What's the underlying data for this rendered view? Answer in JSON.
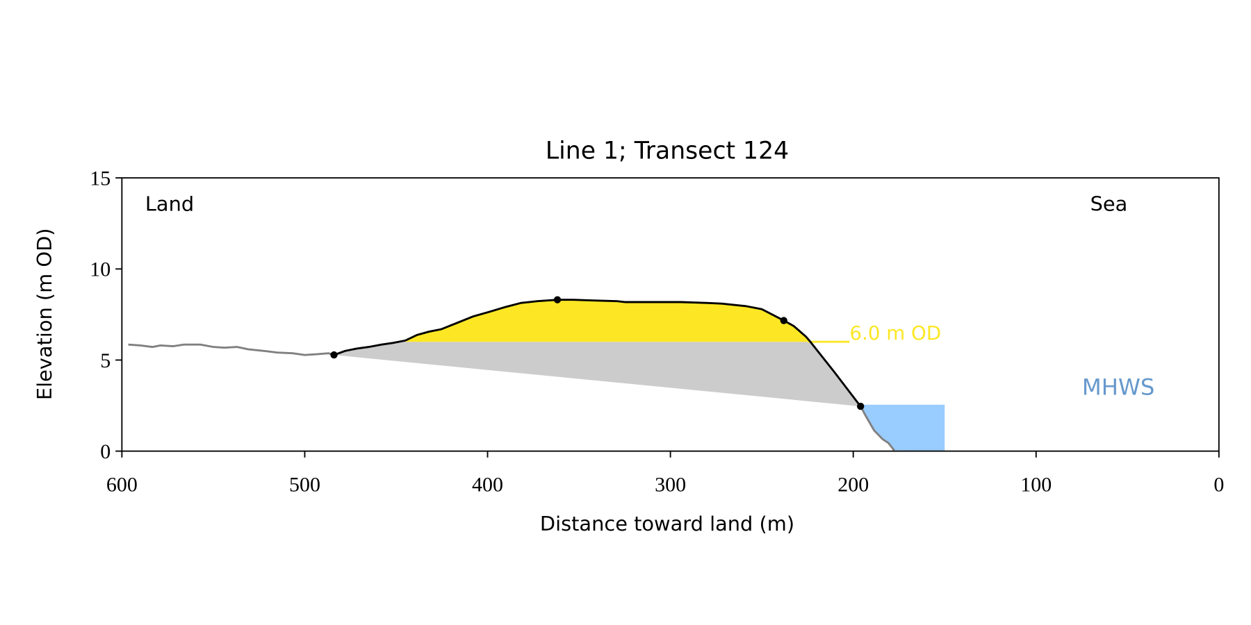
{
  "chart_data": {
    "type": "area",
    "title": "Line 1; Transect 124",
    "xlabel": "Distance toward land (m)",
    "ylabel": "Elevation (m OD)",
    "xlim": [
      600,
      0
    ],
    "ylim": [
      0,
      15
    ],
    "xticks": [
      600,
      500,
      400,
      300,
      200,
      100,
      0
    ],
    "yticks": [
      0,
      5,
      10,
      15
    ],
    "grid": false,
    "annotations": {
      "land": "Land",
      "sea": "Sea",
      "threshold_label": "6.0 m OD",
      "mhws_label": "MHWS"
    },
    "threshold": 6.0,
    "mhws": 2.55,
    "mhws_x_range": [
      196,
      150
    ],
    "colors": {
      "profile_outer": "#808080",
      "profile_dune": "#000000",
      "dune_fill": "#fde725",
      "base_fill": "#cccccc",
      "mhws_fill": "#99ccff",
      "mhws_text": "#6699cc",
      "threshold": "#fde725"
    },
    "profile_landward": [
      [
        596.5,
        5.85
      ],
      [
        589.9,
        5.8
      ],
      [
        583.3,
        5.72
      ],
      [
        579,
        5.8
      ],
      [
        572,
        5.76
      ],
      [
        566,
        5.85
      ],
      [
        557,
        5.85
      ],
      [
        550,
        5.72
      ],
      [
        544,
        5.68
      ],
      [
        537,
        5.72
      ],
      [
        531,
        5.59
      ],
      [
        522,
        5.5
      ],
      [
        515,
        5.41
      ],
      [
        506.6,
        5.37
      ],
      [
        500,
        5.28
      ],
      [
        493.4,
        5.32
      ],
      [
        487,
        5.37
      ],
      [
        484,
        5.28
      ]
    ],
    "profile_dune": [
      [
        484,
        5.28
      ],
      [
        478,
        5.5
      ],
      [
        471.5,
        5.63
      ],
      [
        465,
        5.72
      ],
      [
        458,
        5.85
      ],
      [
        451.8,
        5.94
      ],
      [
        445,
        6.07
      ],
      [
        438.6,
        6.38
      ],
      [
        432,
        6.56
      ],
      [
        425.4,
        6.69
      ],
      [
        416.7,
        7.04
      ],
      [
        408,
        7.39
      ],
      [
        399,
        7.65
      ],
      [
        390,
        7.92
      ],
      [
        381.6,
        8.14
      ],
      [
        372.8,
        8.23
      ],
      [
        361.8,
        8.31
      ],
      [
        353,
        8.31
      ],
      [
        342,
        8.27
      ],
      [
        329,
        8.23
      ],
      [
        324.6,
        8.18
      ],
      [
        307,
        8.18
      ],
      [
        294,
        8.18
      ],
      [
        280.7,
        8.14
      ],
      [
        272,
        8.1
      ],
      [
        258.8,
        7.96
      ],
      [
        250,
        7.79
      ],
      [
        238,
        7.17
      ],
      [
        232.5,
        6.86
      ],
      [
        225.9,
        6.29
      ],
      [
        223.7,
        6.03
      ],
      [
        210.5,
        4.36
      ],
      [
        196,
        2.46
      ]
    ],
    "profile_seaward": [
      [
        196,
        2.46
      ],
      [
        193,
        1.9
      ],
      [
        188.6,
        1.14
      ],
      [
        184,
        0.66
      ],
      [
        180.7,
        0.44
      ],
      [
        177.6,
        0.04
      ]
    ],
    "markers": [
      [
        484,
        5.28
      ],
      [
        361.8,
        8.31
      ],
      [
        238,
        7.17
      ],
      [
        196,
        2.46
      ]
    ]
  }
}
